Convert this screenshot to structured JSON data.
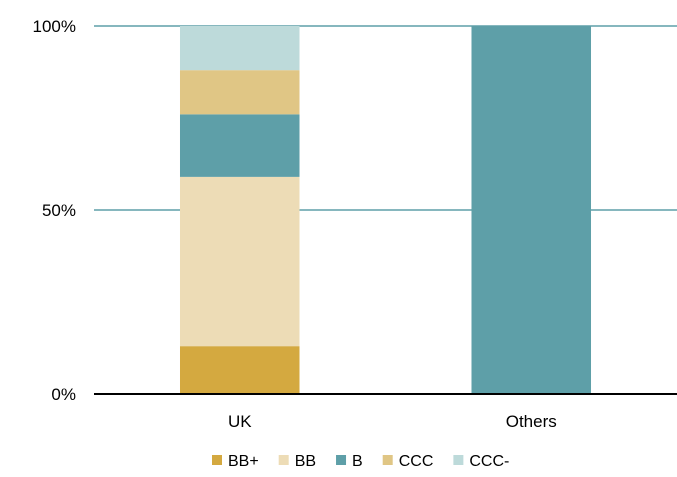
{
  "chart_data": {
    "type": "bar",
    "stacked": true,
    "categories": [
      "UK",
      "Others"
    ],
    "series": [
      {
        "name": "BB+",
        "color": "#d4a940",
        "values": [
          13,
          0
        ]
      },
      {
        "name": "BB",
        "color": "#eddcb6",
        "values": [
          46,
          0
        ]
      },
      {
        "name": "B",
        "color": "#5e9fa8",
        "values": [
          17,
          100
        ]
      },
      {
        "name": "CCC",
        "color": "#e0c685",
        "values": [
          12,
          0
        ]
      },
      {
        "name": "CCC-",
        "color": "#bddada",
        "values": [
          12,
          0
        ]
      }
    ],
    "ylim": [
      0,
      100
    ],
    "y_ticks": [
      0,
      50,
      100
    ],
    "y_tick_labels": [
      "0%",
      "50%",
      "100%"
    ],
    "grid": true,
    "gridline_color": "#5e9fa8",
    "legend_position": "bottom",
    "title": "",
    "xlabel": "",
    "ylabel": ""
  }
}
